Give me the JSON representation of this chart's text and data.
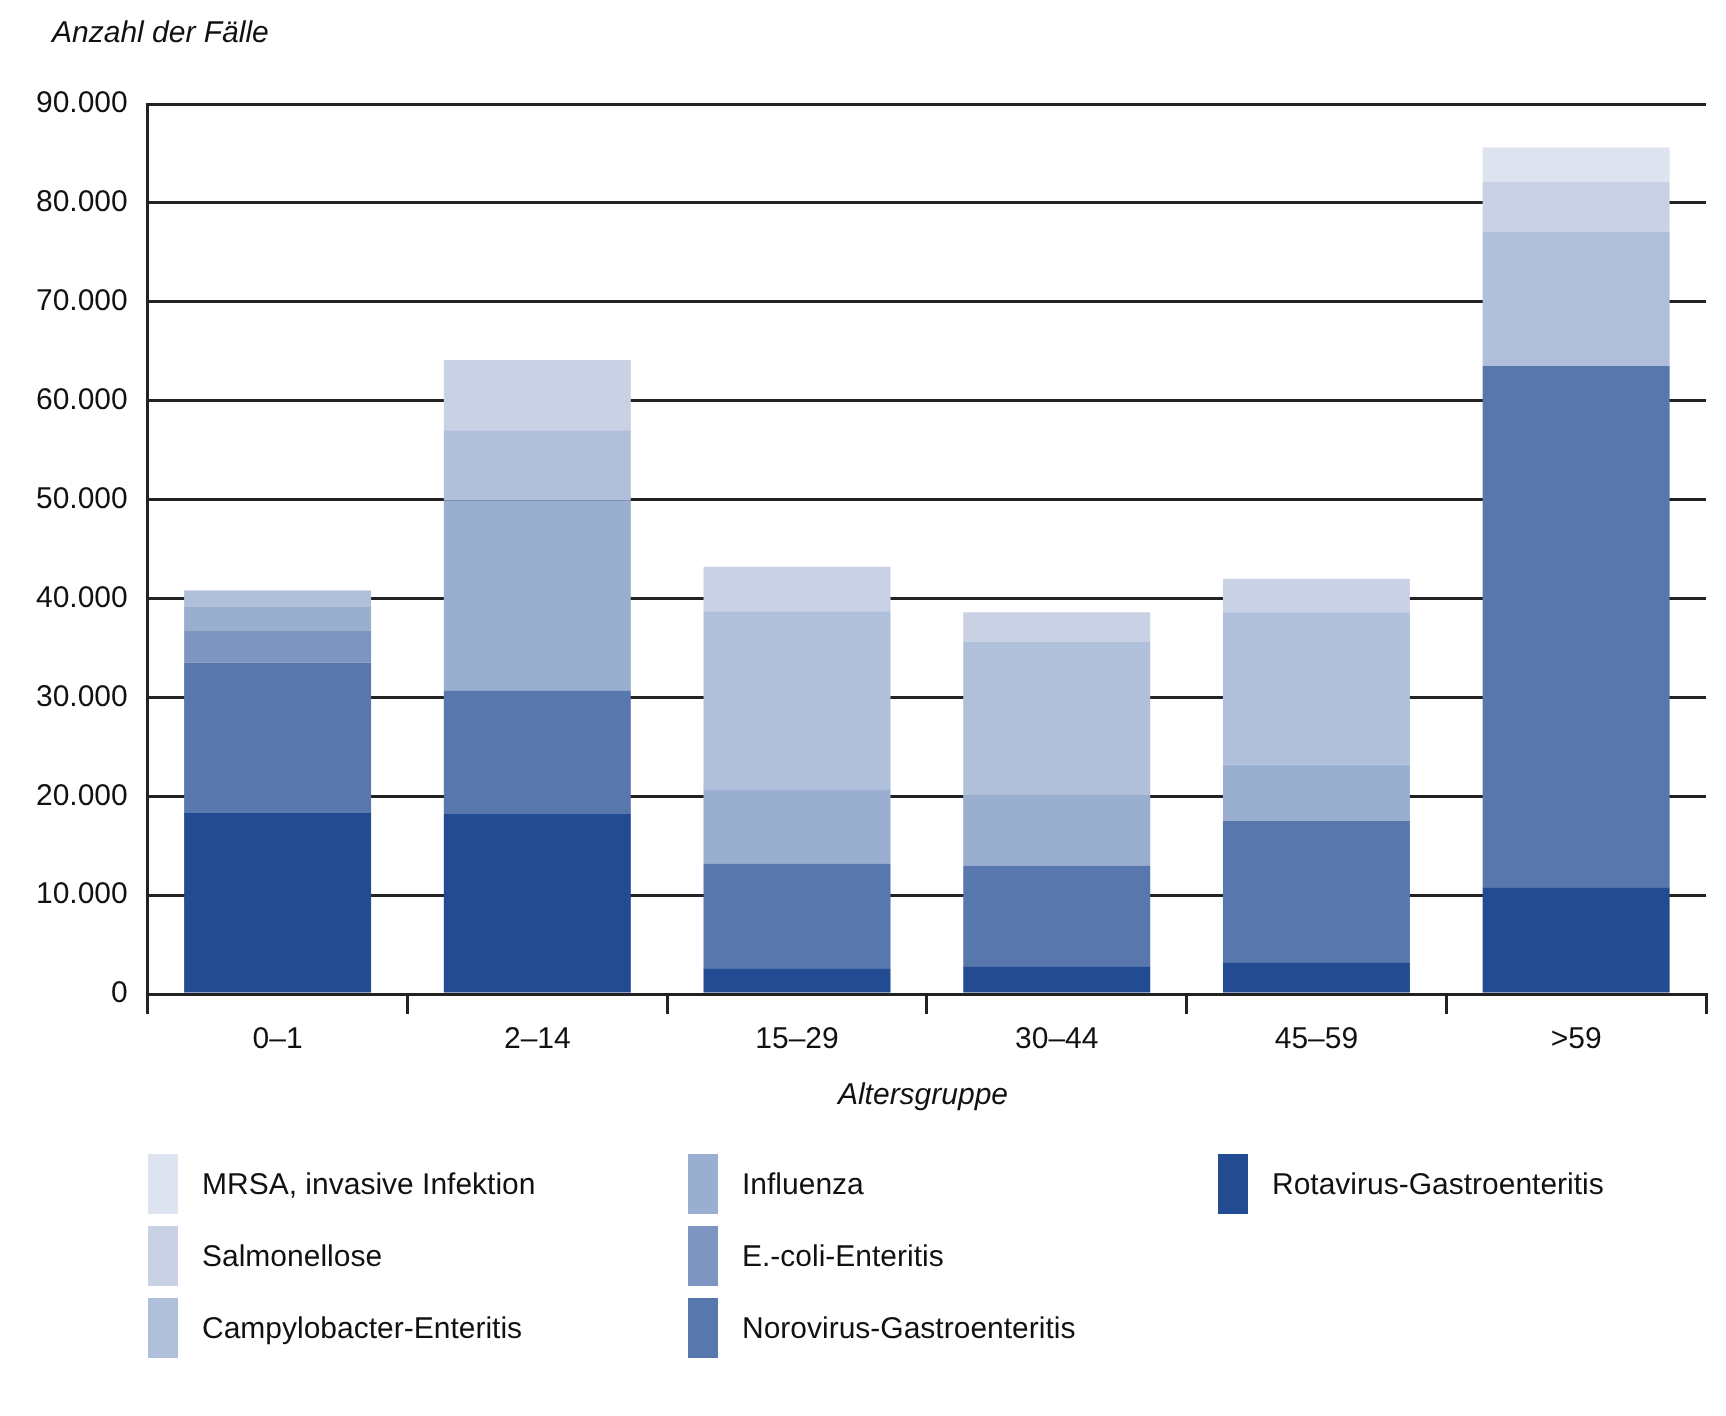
{
  "chart_data": {
    "type": "bar",
    "stacked": true,
    "ylabel": "Anzahl der Fälle",
    "xlabel": "Altersgruppe",
    "categories": [
      "0–1",
      "2–14",
      "15–29",
      "30–44",
      "45–59",
      ">59"
    ],
    "series": [
      {
        "name": "Rotavirus-Gastroenteritis",
        "color": "#224b92",
        "values": [
          18300,
          18200,
          2600,
          2800,
          3200,
          10800
        ]
      },
      {
        "name": "Norovirus-Gastroenteritis",
        "color": "#5877ad",
        "values": [
          15200,
          12500,
          10600,
          10200,
          14300,
          52700
        ]
      },
      {
        "name": "E.-coli-Enteritis",
        "color": "#7d96c1",
        "values": [
          3200,
          0,
          0,
          0,
          0,
          0
        ]
      },
      {
        "name": "Influenza",
        "color": "#9aaecf",
        "values": [
          2500,
          19200,
          7500,
          7200,
          5700,
          0
        ]
      },
      {
        "name": "Campylobacter-Enteritis",
        "color": "#b0c0da",
        "values": [
          1600,
          7100,
          18000,
          15400,
          15400,
          13600
        ]
      },
      {
        "name": "Salmonellose",
        "color": "#c9d2e5",
        "values": [
          0,
          7100,
          4500,
          3000,
          3400,
          5000
        ]
      },
      {
        "name": "MRSA, invasive Infektion",
        "color": "#dde3ef",
        "values": [
          0,
          0,
          0,
          0,
          0,
          3500
        ]
      }
    ],
    "ylim": [
      0,
      90000
    ],
    "yticks": [
      {
        "value": 0,
        "label": "0"
      },
      {
        "value": 10000,
        "label": "10.000"
      },
      {
        "value": 20000,
        "label": "20.000"
      },
      {
        "value": 30000,
        "label": "30.000"
      },
      {
        "value": 40000,
        "label": "40.000"
      },
      {
        "value": 50000,
        "label": "50.000"
      },
      {
        "value": 60000,
        "label": "60.000"
      },
      {
        "value": 70000,
        "label": "70.000"
      },
      {
        "value": 80000,
        "label": "80.000"
      },
      {
        "value": 90000,
        "label": "90.000"
      }
    ],
    "grid": "y",
    "legend": "bottom"
  }
}
